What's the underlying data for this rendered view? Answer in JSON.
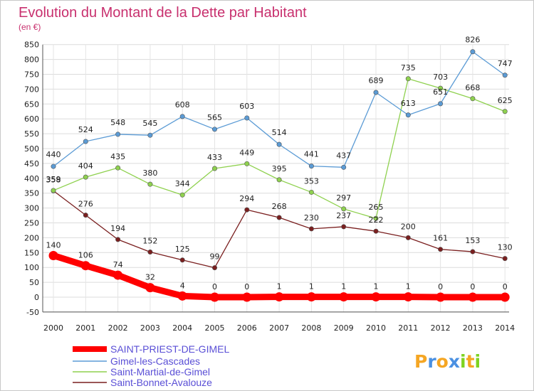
{
  "chart_data": {
    "type": "line",
    "title": "Evolution du Montant de la Dette par Habitant",
    "subtitle": "(en €)",
    "x": [
      "2000",
      "2001",
      "2002",
      "2003",
      "2004",
      "2005",
      "2006",
      "2007",
      "2008",
      "2009",
      "2010",
      "2011",
      "2012",
      "2013",
      "2014"
    ],
    "ylim": [
      -50,
      850
    ],
    "yticks": [
      -50,
      0,
      50,
      100,
      150,
      200,
      250,
      300,
      350,
      400,
      450,
      500,
      550,
      600,
      650,
      700,
      750,
      800,
      850
    ],
    "grid": true,
    "legend_position": "bottom-left",
    "series": [
      {
        "name": "SAINT-PRIEST-DE-GIMEL",
        "color": "#ff0000",
        "values": [
          140,
          106,
          74,
          32,
          4,
          0,
          0,
          1,
          1,
          1,
          1,
          1,
          0,
          0,
          0
        ]
      },
      {
        "name": "Gimel-les-Cascades",
        "color": "#5b9bd5",
        "values": [
          440,
          524,
          548,
          545,
          608,
          565,
          603,
          514,
          441,
          437,
          689,
          613,
          651,
          826,
          747
        ]
      },
      {
        "name": "Saint-Martial-de-Gimel",
        "color": "#8fd14f",
        "values": [
          359,
          404,
          435,
          380,
          344,
          433,
          449,
          395,
          353,
          297,
          265,
          735,
          703,
          668,
          625
        ]
      },
      {
        "name": "Saint-Bonnet-Avalouze",
        "color": "#7a1f1f",
        "values": [
          358,
          276,
          194,
          152,
          125,
          99,
          294,
          268,
          230,
          237,
          222,
          200,
          161,
          153,
          130
        ]
      }
    ]
  },
  "logo": {
    "text": "Proxiti"
  }
}
